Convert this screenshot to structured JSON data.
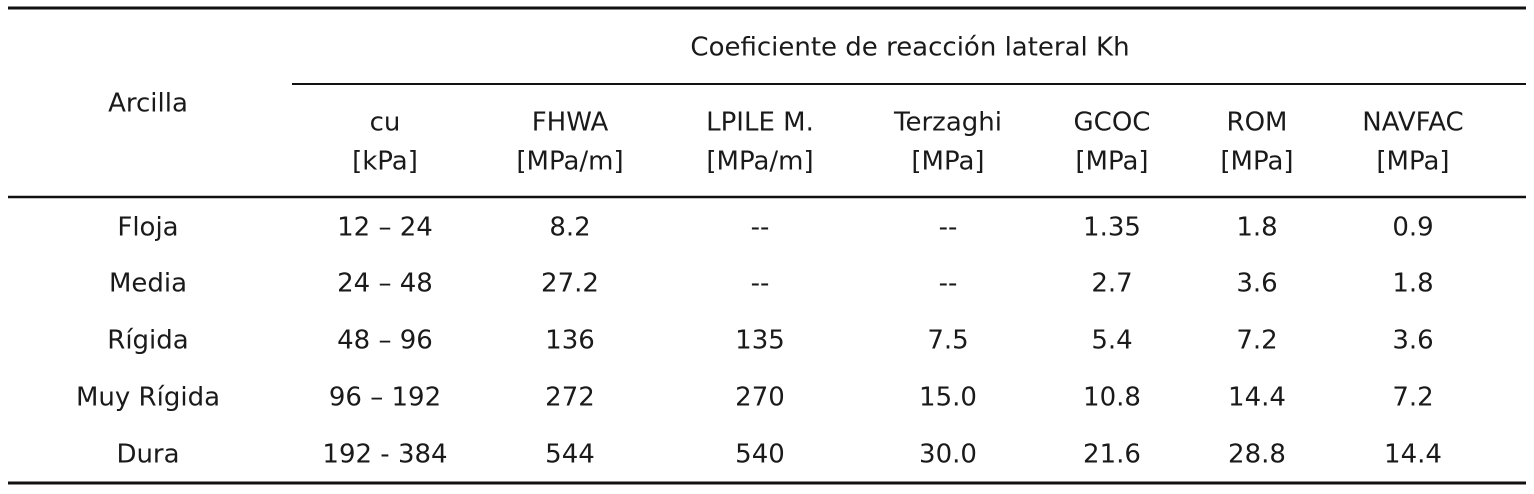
{
  "table": {
    "row_header": "Arcilla",
    "group_header": "Coeficiente de reacción lateral Kh",
    "columns": [
      {
        "name": "cu",
        "unit": "[kPa]"
      },
      {
        "name": "FHWA",
        "unit": "[MPa/m]"
      },
      {
        "name": "LPILE M.",
        "unit": "[MPa/m]"
      },
      {
        "name": "Terzaghi",
        "unit": "[MPa]"
      },
      {
        "name": "GCOC",
        "unit": "[MPa]"
      },
      {
        "name": "ROM",
        "unit": "[MPa]"
      },
      {
        "name": "NAVFAC",
        "unit": "[MPa]"
      }
    ],
    "rows": [
      [
        "Floja",
        "12 – 24",
        "8.2",
        "--",
        "--",
        "1.35",
        "1.8",
        "0.9"
      ],
      [
        "Media",
        "24 – 48",
        "27.2",
        "--",
        "--",
        "2.7",
        "3.6",
        "1.8"
      ],
      [
        "Rígida",
        "48 – 96",
        "136",
        "135",
        "7.5",
        "5.4",
        "7.2",
        "3.6"
      ],
      [
        "Muy Rígida",
        "96 – 192",
        "272",
        "270",
        "15.0",
        "10.8",
        "14.4",
        "7.2"
      ],
      [
        "Dura",
        "192 - 384",
        "544",
        "540",
        "30.0",
        "21.6",
        "28.8",
        "14.4"
      ]
    ]
  }
}
